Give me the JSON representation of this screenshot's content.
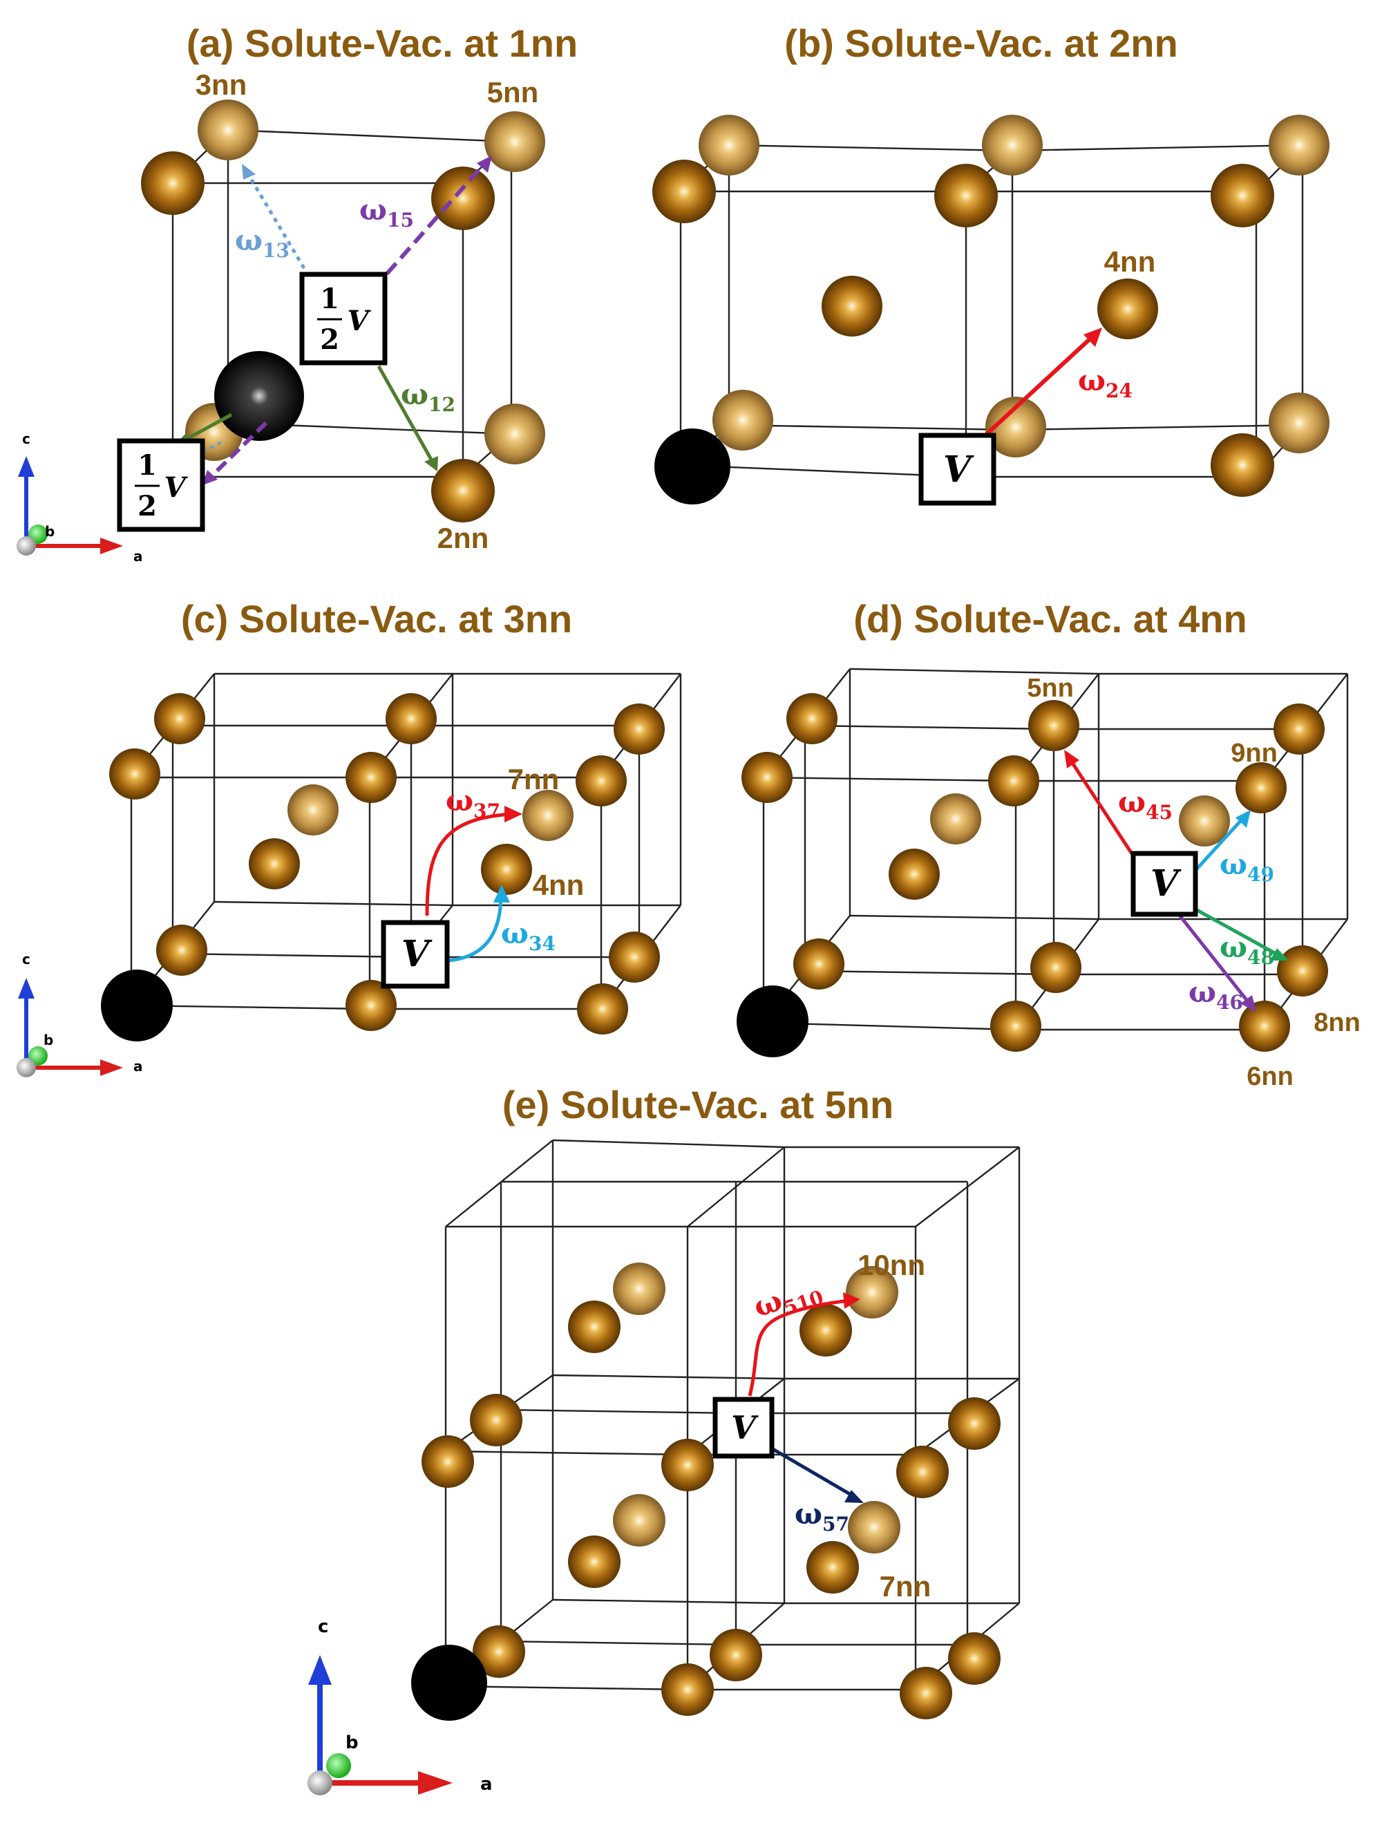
{
  "panels": {
    "a": {
      "title": "(a) Solute-Vac. at 1nn"
    },
    "b": {
      "title": "(b) Solute-Vac. at 2nn"
    },
    "c": {
      "title": "(c) Solute-Vac. at 3nn"
    },
    "d": {
      "title": "(d) Solute-Vac. at 4nn"
    },
    "e": {
      "title": "(e) Solute-Vac. at 5nn"
    }
  },
  "labels": {
    "a": {
      "n3": "3nn",
      "n5": "5nn",
      "n2": "2nn"
    },
    "b": {
      "n4": "4nn"
    },
    "c": {
      "n7": "7nn",
      "n4": "4nn"
    },
    "d": {
      "n5": "5nn",
      "n9": "9nn",
      "n8": "8nn",
      "n6": "6nn"
    },
    "e": {
      "n10": "10nn",
      "n7": "7nn"
    }
  },
  "jumps": {
    "a": {
      "w13": {
        "base": "ω",
        "sub": "13",
        "color": "#6a9fd2"
      },
      "w15": {
        "base": "ω",
        "sub": "15",
        "color": "#7b3aa8"
      },
      "w12": {
        "base": "ω",
        "sub": "12",
        "color": "#4e7d2f"
      }
    },
    "b": {
      "w24": {
        "base": "ω",
        "sub": "24",
        "color": "#e8141b"
      }
    },
    "c": {
      "w37": {
        "base": "ω",
        "sub": "37",
        "color": "#e8141b"
      },
      "w34": {
        "base": "ω",
        "sub": "34",
        "color": "#1fa8e0"
      }
    },
    "d": {
      "w45": {
        "base": "ω",
        "sub": "45",
        "color": "#e8141b"
      },
      "w49": {
        "base": "ω",
        "sub": "49",
        "color": "#1fa8e0"
      },
      "w48": {
        "base": "ω",
        "sub": "48",
        "color": "#1fa35c"
      },
      "w46": {
        "base": "ω",
        "sub": "46",
        "color": "#7b3aa8"
      }
    },
    "e": {
      "w510": {
        "base": "ω",
        "sub": "510",
        "color": "#e8141b"
      },
      "w57": {
        "base": "ω",
        "sub": "57",
        "color": "#0f2660"
      }
    }
  },
  "vacancy": {
    "symbol": "V",
    "half_num": "1",
    "half_den": "2"
  },
  "axes": {
    "c": "c",
    "b": "b",
    "a": "a"
  },
  "colors": {
    "title": "#8a5a10",
    "atom": "#a66a10",
    "solute": "#000000",
    "axis_c": "#1f3fd8",
    "axis_a": "#d91c1c",
    "axis_b": "#2fc22f"
  }
}
